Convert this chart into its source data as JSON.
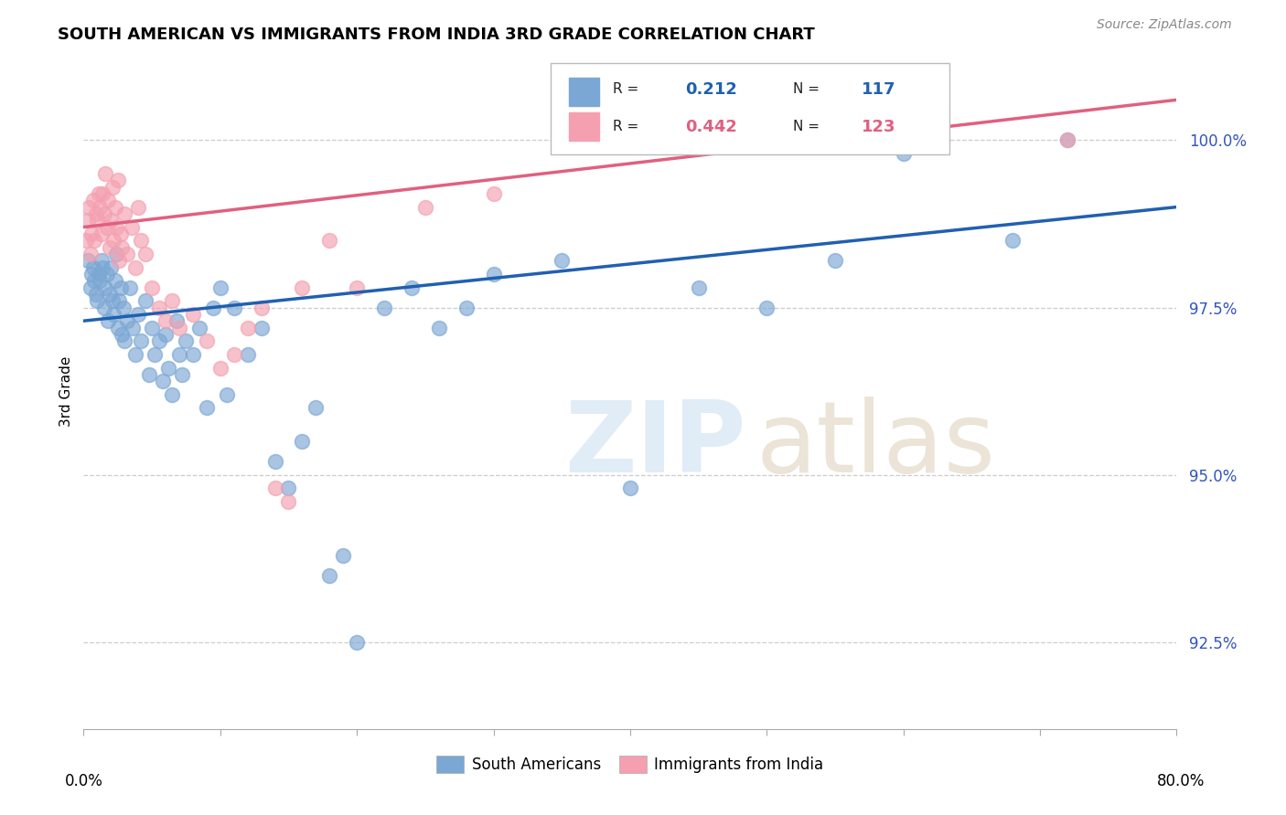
{
  "title": "SOUTH AMERICAN VS IMMIGRANTS FROM INDIA 3RD GRADE CORRELATION CHART",
  "source": "Source: ZipAtlas.com",
  "ylabel": "3rd Grade",
  "yticks": [
    92.5,
    95.0,
    97.5,
    100.0
  ],
  "ytick_labels": [
    "92.5%",
    "95.0%",
    "97.5%",
    "100.0%"
  ],
  "xlim": [
    0.0,
    80.0
  ],
  "ylim": [
    91.2,
    101.3
  ],
  "blue_R": 0.212,
  "blue_N": 117,
  "pink_R": 0.442,
  "pink_N": 123,
  "blue_color": "#7BA7D4",
  "pink_color": "#F4A0B0",
  "blue_line_color": "#2060B0",
  "pink_line_color": "#E06080",
  "legend_label_blue": "South Americans",
  "legend_label_pink": "Immigrants from India",
  "title_fontsize": 13,
  "source_fontsize": 10,
  "blue_scatter_x": [
    0.3,
    0.5,
    0.6,
    0.7,
    0.8,
    0.9,
    1.0,
    1.1,
    1.2,
    1.3,
    1.4,
    1.5,
    1.6,
    1.7,
    1.8,
    1.9,
    2.0,
    2.1,
    2.2,
    2.3,
    2.4,
    2.5,
    2.6,
    2.7,
    2.8,
    2.9,
    3.0,
    3.2,
    3.4,
    3.6,
    3.8,
    4.0,
    4.2,
    4.5,
    4.8,
    5.0,
    5.2,
    5.5,
    5.8,
    6.0,
    6.2,
    6.5,
    6.8,
    7.0,
    7.2,
    7.5,
    8.0,
    8.5,
    9.0,
    9.5,
    10.0,
    10.5,
    11.0,
    12.0,
    13.0,
    14.0,
    15.0,
    16.0,
    17.0,
    18.0,
    19.0,
    20.0,
    22.0,
    24.0,
    26.0,
    28.0,
    30.0,
    35.0,
    40.0,
    45.0,
    50.0,
    55.0,
    60.0,
    68.0,
    72.0
  ],
  "blue_scatter_y": [
    98.2,
    97.8,
    98.0,
    98.1,
    97.9,
    97.7,
    97.6,
    98.0,
    97.9,
    98.2,
    98.1,
    97.5,
    97.8,
    98.0,
    97.3,
    97.7,
    98.1,
    97.6,
    97.4,
    97.9,
    98.3,
    97.2,
    97.6,
    97.8,
    97.1,
    97.5,
    97.0,
    97.3,
    97.8,
    97.2,
    96.8,
    97.4,
    97.0,
    97.6,
    96.5,
    97.2,
    96.8,
    97.0,
    96.4,
    97.1,
    96.6,
    96.2,
    97.3,
    96.8,
    96.5,
    97.0,
    96.8,
    97.2,
    96.0,
    97.5,
    97.8,
    96.2,
    97.5,
    96.8,
    97.2,
    95.2,
    94.8,
    95.5,
    96.0,
    93.5,
    93.8,
    92.5,
    97.5,
    97.8,
    97.2,
    97.5,
    98.0,
    98.2,
    94.8,
    97.8,
    97.5,
    98.2,
    99.8,
    98.5,
    100.0
  ],
  "pink_scatter_x": [
    0.2,
    0.3,
    0.4,
    0.5,
    0.6,
    0.7,
    0.8,
    0.9,
    1.0,
    1.1,
    1.2,
    1.3,
    1.4,
    1.5,
    1.6,
    1.7,
    1.8,
    1.9,
    2.0,
    2.1,
    2.2,
    2.3,
    2.4,
    2.5,
    2.6,
    2.7,
    2.8,
    3.0,
    3.2,
    3.5,
    3.8,
    4.0,
    4.2,
    4.5,
    5.0,
    5.5,
    6.0,
    6.5,
    7.0,
    8.0,
    9.0,
    10.0,
    11.0,
    12.0,
    13.0,
    14.0,
    15.0,
    16.0,
    18.0,
    20.0,
    25.0,
    30.0,
    72.0
  ],
  "pink_scatter_y": [
    98.5,
    98.8,
    99.0,
    98.3,
    98.6,
    99.1,
    98.5,
    98.9,
    98.8,
    99.2,
    99.0,
    98.6,
    99.2,
    98.9,
    99.5,
    98.7,
    99.1,
    98.4,
    98.8,
    99.3,
    98.5,
    99.0,
    98.7,
    99.4,
    98.2,
    98.6,
    98.4,
    98.9,
    98.3,
    98.7,
    98.1,
    99.0,
    98.5,
    98.3,
    97.8,
    97.5,
    97.3,
    97.6,
    97.2,
    97.4,
    97.0,
    96.6,
    96.8,
    97.2,
    97.5,
    94.8,
    94.6,
    97.8,
    98.5,
    97.8,
    99.0,
    99.2,
    100.0
  ],
  "blue_line_x": [
    0.0,
    80.0
  ],
  "blue_line_y": [
    97.3,
    99.0
  ],
  "pink_line_x": [
    0.0,
    80.0
  ],
  "pink_line_y": [
    98.7,
    100.6
  ]
}
